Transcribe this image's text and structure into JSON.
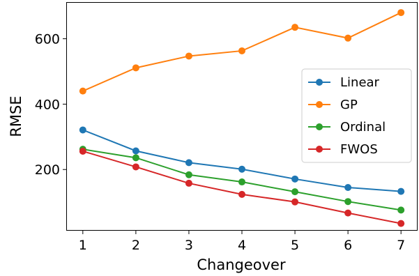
{
  "chart_data": {
    "type": "line",
    "xlabel": "Changeover",
    "ylabel": "RMSE",
    "x": [
      1,
      2,
      3,
      4,
      5,
      6,
      7
    ],
    "xlim": [
      0.7,
      7.3
    ],
    "ylim": [
      15,
      710
    ],
    "yticks": [
      200,
      400,
      600
    ],
    "grid": false,
    "legend_position": "center-right",
    "series": [
      {
        "name": "Linear",
        "color": "#1f77b4",
        "values": [
          321,
          257,
          221,
          201,
          171,
          145,
          133
        ]
      },
      {
        "name": "GP",
        "color": "#ff7f0e",
        "values": [
          440,
          511,
          547,
          563,
          635,
          602,
          680
        ]
      },
      {
        "name": "Ordinal",
        "color": "#2ca02c",
        "values": [
          262,
          236,
          184,
          162,
          132,
          102,
          76
        ]
      },
      {
        "name": "FWOS",
        "color": "#d62728",
        "values": [
          256,
          208,
          158,
          124,
          101,
          67,
          35
        ]
      }
    ]
  }
}
